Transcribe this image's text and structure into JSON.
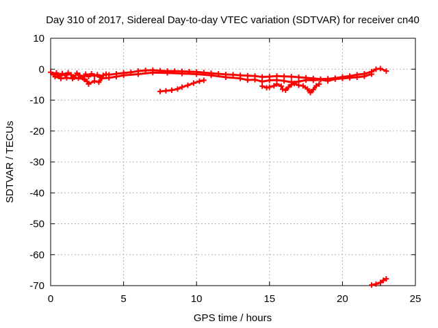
{
  "chart_data": {
    "type": "scatter",
    "title": "Day 310 of 2017, Sidereal Day-to-day VTEC variation (SDTVAR) for receiver cn40",
    "xlabel": "GPS time / hours",
    "ylabel": "SDTVAR / TECUs",
    "xlim": [
      0,
      25
    ],
    "ylim": [
      -70,
      10
    ],
    "xticks": [
      0,
      5,
      10,
      15,
      20,
      25
    ],
    "yticks": [
      10,
      0,
      -10,
      -20,
      -30,
      -40,
      -50,
      -60,
      -70
    ],
    "grid": true,
    "point_style": "plus",
    "series_color": "#ff0000",
    "series": [
      {
        "name": "main-band",
        "points": [
          [
            0.0,
            -1.0
          ],
          [
            0.2,
            -1.8
          ],
          [
            0.4,
            -1.2
          ],
          [
            0.6,
            -2.2
          ],
          [
            0.8,
            -1.4
          ],
          [
            1.0,
            -2.0
          ],
          [
            1.2,
            -1.2
          ],
          [
            1.4,
            -1.8
          ],
          [
            1.6,
            -2.6
          ],
          [
            1.8,
            -1.3
          ],
          [
            2.0,
            -2.0
          ],
          [
            2.2,
            -2.8
          ],
          [
            2.4,
            -1.6
          ],
          [
            2.6,
            -2.4
          ],
          [
            2.8,
            -1.5
          ],
          [
            3.0,
            -2.2
          ],
          [
            3.2,
            -1.8
          ],
          [
            3.4,
            -2.6
          ],
          [
            3.6,
            -2.0
          ],
          [
            3.8,
            -1.6
          ],
          [
            4.0,
            -1.8
          ],
          [
            4.5,
            -1.5
          ],
          [
            5.0,
            -1.2
          ],
          [
            5.5,
            -1.0
          ],
          [
            6.0,
            -0.6
          ],
          [
            6.5,
            -0.4
          ],
          [
            7.0,
            -0.3
          ],
          [
            7.5,
            -0.5
          ],
          [
            8.0,
            -0.6
          ],
          [
            8.5,
            -0.6
          ],
          [
            9.0,
            -0.7
          ],
          [
            9.5,
            -0.8
          ],
          [
            10.0,
            -0.9
          ],
          [
            10.5,
            -1.1
          ],
          [
            11.0,
            -1.3
          ],
          [
            11.5,
            -1.5
          ],
          [
            12.0,
            -1.7
          ],
          [
            12.5,
            -1.8
          ],
          [
            13.0,
            -2.0
          ],
          [
            13.5,
            -2.1
          ],
          [
            14.0,
            -2.2
          ],
          [
            14.5,
            -2.5
          ],
          [
            15.0,
            -2.4
          ],
          [
            15.5,
            -2.2
          ],
          [
            16.0,
            -2.3
          ],
          [
            16.5,
            -2.4
          ],
          [
            17.0,
            -2.6
          ],
          [
            17.5,
            -2.8
          ],
          [
            18.0,
            -3.0
          ],
          [
            18.5,
            -3.2
          ],
          [
            19.0,
            -3.1
          ],
          [
            19.5,
            -2.9
          ],
          [
            20.0,
            -2.5
          ],
          [
            20.5,
            -2.2
          ],
          [
            21.0,
            -1.8
          ],
          [
            21.5,
            -1.5
          ],
          [
            22.0,
            -0.8
          ],
          [
            22.3,
            0.0
          ],
          [
            22.6,
            0.2
          ],
          [
            23.0,
            -0.6
          ]
        ]
      },
      {
        "name": "lower-band",
        "points": [
          [
            0.3,
            -2.4
          ],
          [
            0.7,
            -3.0
          ],
          [
            1.1,
            -2.8
          ],
          [
            1.5,
            -3.0
          ],
          [
            1.9,
            -2.9
          ],
          [
            2.3,
            -3.2
          ],
          [
            2.5,
            -4.0
          ],
          [
            2.6,
            -4.8
          ],
          [
            3.0,
            -3.8
          ],
          [
            3.3,
            -4.2
          ],
          [
            3.5,
            -3.0
          ],
          [
            4.0,
            -2.8
          ],
          [
            4.5,
            -2.4
          ],
          [
            5.0,
            -2.0
          ],
          [
            6.0,
            -1.6
          ],
          [
            7.0,
            -1.1
          ],
          [
            8.0,
            -1.2
          ],
          [
            9.0,
            -1.4
          ],
          [
            10.0,
            -1.6
          ],
          [
            11.0,
            -2.0
          ],
          [
            12.0,
            -2.6
          ],
          [
            13.0,
            -3.0
          ],
          [
            13.5,
            -3.5
          ],
          [
            14.0,
            -3.4
          ],
          [
            14.5,
            -4.0
          ],
          [
            15.0,
            -3.6
          ],
          [
            15.5,
            -3.5
          ],
          [
            16.0,
            -3.8
          ],
          [
            16.5,
            -4.2
          ],
          [
            17.0,
            -4.0
          ],
          [
            17.5,
            -3.5
          ],
          [
            18.0,
            -3.6
          ],
          [
            18.5,
            -3.4
          ],
          [
            19.0,
            -3.8
          ],
          [
            19.5,
            -3.2
          ],
          [
            20.0,
            -3.0
          ],
          [
            20.5,
            -2.8
          ],
          [
            21.0,
            -2.6
          ],
          [
            21.5,
            -2.3
          ],
          [
            22.0,
            -1.6
          ]
        ]
      },
      {
        "name": "descending-arc",
        "points": [
          [
            7.5,
            -7.2
          ],
          [
            7.9,
            -7.0
          ],
          [
            8.3,
            -6.8
          ],
          [
            8.7,
            -6.4
          ],
          [
            9.0,
            -5.8
          ],
          [
            9.4,
            -5.2
          ],
          [
            9.8,
            -4.5
          ],
          [
            10.2,
            -3.9
          ],
          [
            10.5,
            -3.6
          ]
        ]
      },
      {
        "name": "dips-15-18h",
        "points": [
          [
            14.5,
            -5.5
          ],
          [
            14.8,
            -6.0
          ],
          [
            15.0,
            -5.8
          ],
          [
            15.3,
            -5.4
          ],
          [
            15.5,
            -4.8
          ],
          [
            15.8,
            -5.5
          ],
          [
            15.9,
            -6.5
          ],
          [
            16.1,
            -6.8
          ],
          [
            16.3,
            -5.8
          ],
          [
            16.5,
            -5.0
          ],
          [
            16.7,
            -4.6
          ],
          [
            17.0,
            -5.2
          ],
          [
            17.3,
            -5.4
          ],
          [
            17.6,
            -6.4
          ],
          [
            17.8,
            -7.6
          ],
          [
            18.0,
            -6.6
          ],
          [
            18.2,
            -5.4
          ],
          [
            18.4,
            -4.8
          ]
        ]
      },
      {
        "name": "late-outlier",
        "points": [
          [
            22.0,
            -69.8
          ],
          [
            22.3,
            -69.5
          ],
          [
            22.6,
            -69.0
          ],
          [
            22.8,
            -68.3
          ],
          [
            23.0,
            -67.8
          ]
        ]
      }
    ]
  }
}
